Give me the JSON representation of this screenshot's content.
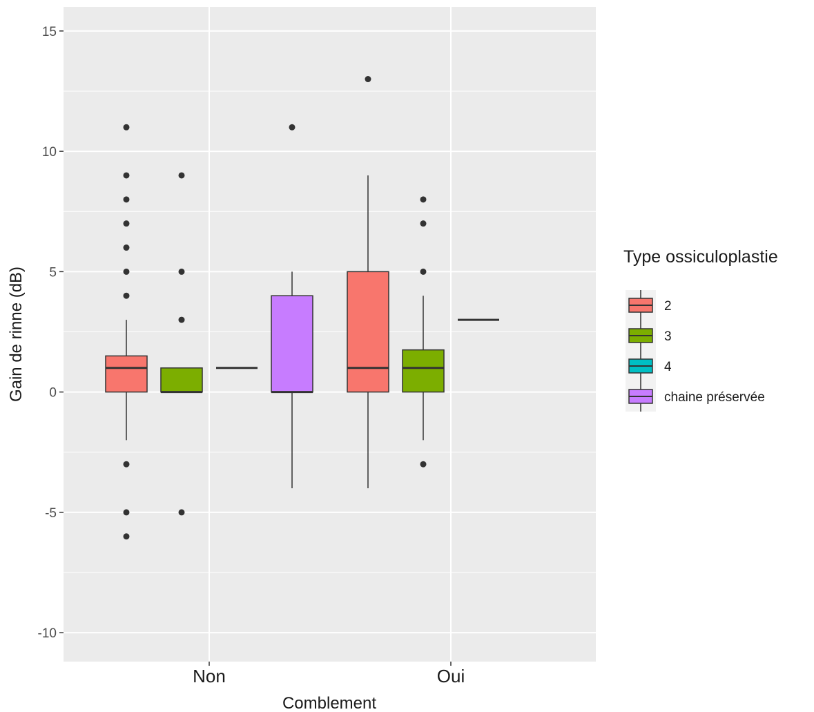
{
  "chart_data": {
    "type": "box",
    "xlabel": "Comblement",
    "ylabel": "Gain de rinne (dB)",
    "ylim": [
      -11.2,
      16
    ],
    "y_ticks": [
      -10,
      -5,
      0,
      5,
      10,
      15
    ],
    "categories": [
      "Non",
      "Oui"
    ],
    "grid": true,
    "legend": {
      "title": "Type ossiculoplastie",
      "position": "right",
      "entries": [
        {
          "name": "2",
          "color": "#F8766D"
        },
        {
          "name": "3",
          "color": "#7CAE00"
        },
        {
          "name": "4",
          "color": "#00BFC4"
        },
        {
          "name": "chaine préservée",
          "color": "#C77CFF"
        }
      ]
    },
    "boxes": [
      {
        "category": "Non",
        "group": "2",
        "lower_whisker": -2,
        "q1": 0,
        "median": 1,
        "q3": 1.5,
        "upper_whisker": 3,
        "outliers": [
          11,
          9,
          8,
          7,
          6,
          5,
          4,
          -3,
          -5,
          -6
        ]
      },
      {
        "category": "Non",
        "group": "3",
        "lower_whisker": 0,
        "q1": 0,
        "median": 0,
        "q3": 1,
        "upper_whisker": 1,
        "outliers": [
          9,
          5,
          3,
          -5
        ]
      },
      {
        "category": "Non",
        "group": "4",
        "lower_whisker": 1,
        "q1": 1,
        "median": 1,
        "q3": 1,
        "upper_whisker": 1,
        "outliers": []
      },
      {
        "category": "Non",
        "group": "chaine préservée",
        "lower_whisker": -4,
        "q1": 0,
        "median": 0,
        "q3": 4,
        "upper_whisker": 5,
        "outliers": [
          11
        ]
      },
      {
        "category": "Oui",
        "group": "2",
        "lower_whisker": -4,
        "q1": 0,
        "median": 1,
        "q3": 5,
        "upper_whisker": 9,
        "outliers": [
          13
        ]
      },
      {
        "category": "Oui",
        "group": "3",
        "lower_whisker": -2,
        "q1": 0,
        "median": 1,
        "q3": 1.75,
        "upper_whisker": 4,
        "outliers": [
          8,
          7,
          5,
          -3
        ]
      },
      {
        "category": "Oui",
        "group": "4",
        "lower_whisker": 3,
        "q1": 3,
        "median": 3,
        "q3": 3,
        "upper_whisker": 3,
        "outliers": []
      }
    ]
  }
}
